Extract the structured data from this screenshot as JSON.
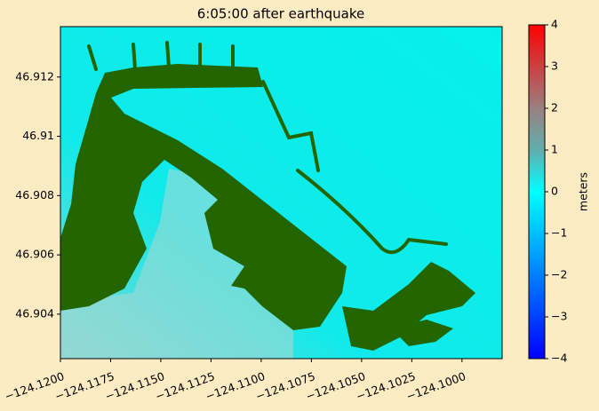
{
  "chart_data": {
    "type": "image",
    "title": "6:05:00 after earthquake",
    "xlim": [
      -124.12,
      -124.098
    ],
    "xticks": [
      {
        "value": -124.12,
        "label": "−124.1200"
      },
      {
        "value": -124.1175,
        "label": "−124.1175"
      },
      {
        "value": -124.115,
        "label": "−124.1150"
      },
      {
        "value": -124.1125,
        "label": "−124.1125"
      },
      {
        "value": -124.11,
        "label": "−124.1100"
      },
      {
        "value": -124.1075,
        "label": "−124.1075"
      },
      {
        "value": -124.105,
        "label": "−124.1050"
      },
      {
        "value": -124.1025,
        "label": "−124.1025"
      },
      {
        "value": -124.1,
        "label": "−124.1000"
      }
    ],
    "ylim": [
      46.9025,
      46.9137
    ],
    "yticks": [
      46.904,
      46.906,
      46.908,
      46.91,
      46.912
    ],
    "colorbar": {
      "label": "meters",
      "clim": [
        -4,
        4
      ],
      "ticks": [
        {
          "value": -4,
          "label": "−4"
        },
        {
          "value": -3,
          "label": "−3"
        },
        {
          "value": -2,
          "label": "−2"
        },
        {
          "value": -1,
          "label": "−1"
        },
        0,
        1,
        2,
        3,
        4
      ]
    }
  }
}
